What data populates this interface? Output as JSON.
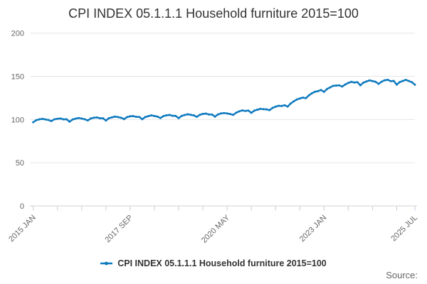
{
  "page": {
    "title": "CPI INDEX 05.1.1.1 Household furniture 2015=100",
    "source_label": "Source:"
  },
  "legend": {
    "label": "CPI INDEX 05.1.1.1 Household furniture 2015=100",
    "marker_color": "#0d79be",
    "position": "bottom-center"
  },
  "chart_data": {
    "type": "line",
    "title": "CPI INDEX 05.1.1.1 Household furniture 2015=100",
    "x_unit": "month",
    "x_range": [
      "2015 JAN",
      "2025 JUL"
    ],
    "months_total": 127,
    "x_tick_months": [
      0,
      8,
      16,
      24,
      32,
      40,
      48,
      56,
      64,
      72,
      80,
      88,
      96,
      104,
      112,
      120,
      126
    ],
    "x_axis_labels": [
      {
        "month": 0,
        "label": "2015 JAN"
      },
      {
        "month": 32,
        "label": "2017 SEP"
      },
      {
        "month": 64,
        "label": "2020 MAY"
      },
      {
        "month": 96,
        "label": "2023 JAN"
      },
      {
        "month": 126,
        "label": "2025 JUL"
      }
    ],
    "ylim": [
      0,
      200
    ],
    "y_ticks": [
      0,
      50,
      100,
      150,
      200
    ],
    "grid": true,
    "legend_position": "bottom",
    "line_color": "#0d79be",
    "grid_color": "#e6e6e6",
    "axis_color": "#d0d0d0",
    "tick_color": "#c2cce0",
    "label_color": "#666666",
    "series": [
      {
        "name": "CPI INDEX 05.1.1.1 Household furniture 2015=100",
        "start": "2015 JAN",
        "end": "2025 JUL",
        "values": [
          96.9,
          99.3,
          100.2,
          100.8,
          100.1,
          99.5,
          98.2,
          100.3,
          100.9,
          101.2,
          100.2,
          100.3,
          97.5,
          100.0,
          101.0,
          101.8,
          101.1,
          100.3,
          99.0,
          101.2,
          102.1,
          102.4,
          101.5,
          101.4,
          98.9,
          101.5,
          102.5,
          103.4,
          102.8,
          102.0,
          100.5,
          102.8,
          103.7,
          104.0,
          103.1,
          103.0,
          100.4,
          102.9,
          103.9,
          104.8,
          104.1,
          103.4,
          101.7,
          104.0,
          104.9,
          105.3,
          104.3,
          104.2,
          101.6,
          104.2,
          105.2,
          106.1,
          105.5,
          104.8,
          103.2,
          105.5,
          106.5,
          106.9,
          105.9,
          105.8,
          103.4,
          106.0,
          107.0,
          107.5,
          107.0,
          106.4,
          105.4,
          107.9,
          109.4,
          110.6,
          109.9,
          110.4,
          107.8,
          110.3,
          111.4,
          112.4,
          112.0,
          111.8,
          110.9,
          113.4,
          114.9,
          115.9,
          115.7,
          116.6,
          115.0,
          118.6,
          121.0,
          123.2,
          124.4,
          125.4,
          124.7,
          127.9,
          130.4,
          132.2,
          132.8,
          134.2,
          132.0,
          135.4,
          137.2,
          139.0,
          139.3,
          139.6,
          138.2,
          140.6,
          142.4,
          143.6,
          142.9,
          143.3,
          139.7,
          142.7,
          144.0,
          145.3,
          144.5,
          143.7,
          141.3,
          143.8,
          145.4,
          146.0,
          144.4,
          144.7,
          140.4,
          143.4,
          144.7,
          145.9,
          144.6,
          143.3,
          140.3
        ]
      }
    ]
  }
}
